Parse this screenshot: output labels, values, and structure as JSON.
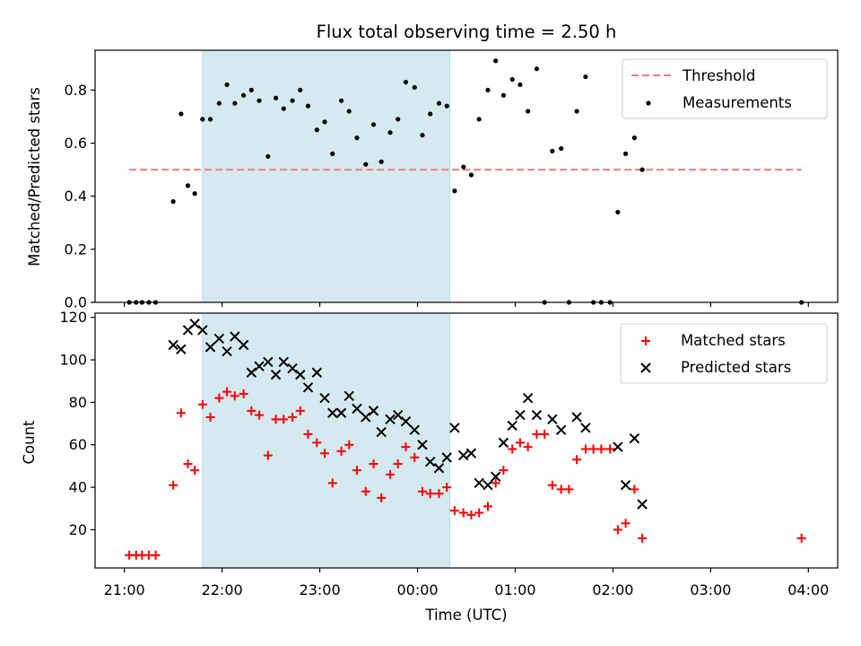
{
  "chart_data": [
    {
      "type": "scatter",
      "panel": "top",
      "title": "Flux total observing time = 2.50 h",
      "xlabel": "",
      "ylabel": "Matched/Predicted stars",
      "x_unit": "hours since 21:00 UTC",
      "xlim": [
        -0.3,
        7.3
      ],
      "ylim": [
        0,
        0.95
      ],
      "yticks": [
        0.0,
        0.2,
        0.4,
        0.6,
        0.8
      ],
      "ytick_labels": [
        "0.0",
        "0.2",
        "0.4",
        "0.6",
        "0.8"
      ],
      "shaded_interval": {
        "x": [
          0.8,
          3.33
        ],
        "color": "#d4eaf0"
      },
      "grid": false,
      "legend_position": "top-right",
      "threshold": {
        "name": "Threshold",
        "value": 0.5,
        "x": [
          0.05,
          6.93
        ],
        "color": "#f08080",
        "style": "dashed"
      },
      "series": [
        {
          "name": "Measurements",
          "color": "#000000",
          "marker": "dot",
          "points": [
            [
              0.05,
              0.0
            ],
            [
              0.12,
              0.0
            ],
            [
              0.18,
              0.0
            ],
            [
              0.25,
              0.0
            ],
            [
              0.32,
              0.0
            ],
            [
              0.5,
              0.38
            ],
            [
              0.58,
              0.71
            ],
            [
              0.65,
              0.44
            ],
            [
              0.72,
              0.41
            ],
            [
              0.8,
              0.69
            ],
            [
              0.88,
              0.69
            ],
            [
              0.97,
              0.75
            ],
            [
              1.05,
              0.82
            ],
            [
              1.13,
              0.75
            ],
            [
              1.22,
              0.78
            ],
            [
              1.3,
              0.8
            ],
            [
              1.38,
              0.76
            ],
            [
              1.47,
              0.55
            ],
            [
              1.55,
              0.77
            ],
            [
              1.63,
              0.73
            ],
            [
              1.72,
              0.76
            ],
            [
              1.8,
              0.8
            ],
            [
              1.88,
              0.74
            ],
            [
              1.97,
              0.65
            ],
            [
              2.05,
              0.68
            ],
            [
              2.13,
              0.56
            ],
            [
              2.22,
              0.76
            ],
            [
              2.3,
              0.72
            ],
            [
              2.38,
              0.62
            ],
            [
              2.47,
              0.52
            ],
            [
              2.55,
              0.67
            ],
            [
              2.63,
              0.53
            ],
            [
              2.72,
              0.64
            ],
            [
              2.8,
              0.69
            ],
            [
              2.88,
              0.83
            ],
            [
              2.97,
              0.81
            ],
            [
              3.05,
              0.63
            ],
            [
              3.13,
              0.71
            ],
            [
              3.22,
              0.75
            ],
            [
              3.3,
              0.74
            ],
            [
              3.38,
              0.42
            ],
            [
              3.47,
              0.51
            ],
            [
              3.55,
              0.48
            ],
            [
              3.63,
              0.69
            ],
            [
              3.72,
              0.8
            ],
            [
              3.8,
              0.91
            ],
            [
              3.88,
              0.78
            ],
            [
              3.97,
              0.84
            ],
            [
              4.05,
              0.82
            ],
            [
              4.13,
              0.72
            ],
            [
              4.22,
              0.88
            ],
            [
              4.3,
              0.0
            ],
            [
              4.38,
              0.57
            ],
            [
              4.47,
              0.58
            ],
            [
              4.55,
              0.0
            ],
            [
              4.63,
              0.72
            ],
            [
              4.72,
              0.85
            ],
            [
              4.8,
              0.0
            ],
            [
              4.88,
              0.0
            ],
            [
              4.97,
              0.0
            ],
            [
              5.05,
              0.34
            ],
            [
              5.13,
              0.56
            ],
            [
              5.22,
              0.62
            ],
            [
              5.3,
              0.5
            ],
            [
              6.93,
              0.0
            ]
          ]
        }
      ]
    },
    {
      "type": "scatter",
      "panel": "bottom",
      "xlabel": "Time (UTC)",
      "ylabel": "Count",
      "x_unit": "hours since 21:00 UTC",
      "xlim": [
        -0.3,
        7.3
      ],
      "ylim": [
        2,
        122
      ],
      "yticks": [
        20,
        40,
        60,
        80,
        100,
        120
      ],
      "ytick_labels": [
        "20",
        "40",
        "60",
        "80",
        "100",
        "120"
      ],
      "xticks": [
        0,
        1,
        2,
        3,
        4,
        5,
        6,
        7
      ],
      "xtick_labels": [
        "21:00",
        "22:00",
        "23:00",
        "00:00",
        "01:00",
        "02:00",
        "03:00",
        "04:00"
      ],
      "shaded_interval": {
        "x": [
          0.8,
          3.33
        ],
        "color": "#d4eaf0"
      },
      "grid": false,
      "legend_position": "top-right",
      "series": [
        {
          "name": "Matched stars",
          "color": "#ff0000",
          "marker": "plus",
          "points": [
            [
              0.05,
              8
            ],
            [
              0.12,
              8
            ],
            [
              0.18,
              8
            ],
            [
              0.25,
              8
            ],
            [
              0.32,
              8
            ],
            [
              0.5,
              41
            ],
            [
              0.58,
              75
            ],
            [
              0.65,
              51
            ],
            [
              0.72,
              48
            ],
            [
              0.8,
              79
            ],
            [
              0.88,
              73
            ],
            [
              0.97,
              82
            ],
            [
              1.05,
              85
            ],
            [
              1.13,
              83
            ],
            [
              1.22,
              84
            ],
            [
              1.3,
              76
            ],
            [
              1.38,
              74
            ],
            [
              1.47,
              55
            ],
            [
              1.55,
              72
            ],
            [
              1.63,
              72
            ],
            [
              1.72,
              73
            ],
            [
              1.8,
              76
            ],
            [
              1.88,
              65
            ],
            [
              1.97,
              61
            ],
            [
              2.05,
              56
            ],
            [
              2.13,
              42
            ],
            [
              2.22,
              57
            ],
            [
              2.3,
              60
            ],
            [
              2.38,
              48
            ],
            [
              2.47,
              38
            ],
            [
              2.55,
              51
            ],
            [
              2.63,
              35
            ],
            [
              2.72,
              46
            ],
            [
              2.8,
              51
            ],
            [
              2.88,
              59
            ],
            [
              2.97,
              54
            ],
            [
              3.05,
              38
            ],
            [
              3.13,
              37
            ],
            [
              3.22,
              37
            ],
            [
              3.3,
              40
            ],
            [
              3.38,
              29
            ],
            [
              3.47,
              28
            ],
            [
              3.55,
              27
            ],
            [
              3.63,
              28
            ],
            [
              3.72,
              31
            ],
            [
              3.8,
              42
            ],
            [
              3.88,
              48
            ],
            [
              3.97,
              58
            ],
            [
              4.05,
              61
            ],
            [
              4.13,
              59
            ],
            [
              4.22,
              65
            ],
            [
              4.3,
              65
            ],
            [
              4.38,
              41
            ],
            [
              4.47,
              39
            ],
            [
              4.55,
              39
            ],
            [
              4.63,
              53
            ],
            [
              4.72,
              58
            ],
            [
              4.8,
              58
            ],
            [
              4.88,
              58
            ],
            [
              4.97,
              58
            ],
            [
              5.05,
              20
            ],
            [
              5.13,
              23
            ],
            [
              5.22,
              39
            ],
            [
              5.3,
              16
            ],
            [
              6.93,
              16
            ]
          ]
        },
        {
          "name": "Predicted stars",
          "color": "#000000",
          "marker": "x",
          "points": [
            [
              0.5,
              107
            ],
            [
              0.58,
              105
            ],
            [
              0.65,
              114
            ],
            [
              0.72,
              117
            ],
            [
              0.8,
              114
            ],
            [
              0.88,
              106
            ],
            [
              0.97,
              110
            ],
            [
              1.05,
              104
            ],
            [
              1.13,
              111
            ],
            [
              1.22,
              107
            ],
            [
              1.3,
              94
            ],
            [
              1.38,
              97
            ],
            [
              1.47,
              99
            ],
            [
              1.55,
              93
            ],
            [
              1.63,
              99
            ],
            [
              1.72,
              96
            ],
            [
              1.8,
              93
            ],
            [
              1.88,
              87
            ],
            [
              1.97,
              94
            ],
            [
              2.05,
              82
            ],
            [
              2.13,
              75
            ],
            [
              2.22,
              75
            ],
            [
              2.3,
              83
            ],
            [
              2.38,
              77
            ],
            [
              2.47,
              73
            ],
            [
              2.55,
              76
            ],
            [
              2.63,
              66
            ],
            [
              2.72,
              72
            ],
            [
              2.8,
              74
            ],
            [
              2.88,
              71
            ],
            [
              2.97,
              67
            ],
            [
              3.05,
              60
            ],
            [
              3.13,
              52
            ],
            [
              3.22,
              49
            ],
            [
              3.3,
              54
            ],
            [
              3.38,
              68
            ],
            [
              3.47,
              55
            ],
            [
              3.55,
              56
            ],
            [
              3.63,
              42
            ],
            [
              3.72,
              41
            ],
            [
              3.8,
              45
            ],
            [
              3.88,
              61
            ],
            [
              3.97,
              69
            ],
            [
              4.05,
              74
            ],
            [
              4.13,
              82
            ],
            [
              4.22,
              74
            ],
            [
              4.38,
              72
            ],
            [
              4.47,
              67
            ],
            [
              4.63,
              73
            ],
            [
              4.72,
              68
            ],
            [
              5.05,
              59
            ],
            [
              5.13,
              41
            ],
            [
              5.22,
              63
            ],
            [
              5.3,
              32
            ]
          ]
        }
      ]
    }
  ]
}
